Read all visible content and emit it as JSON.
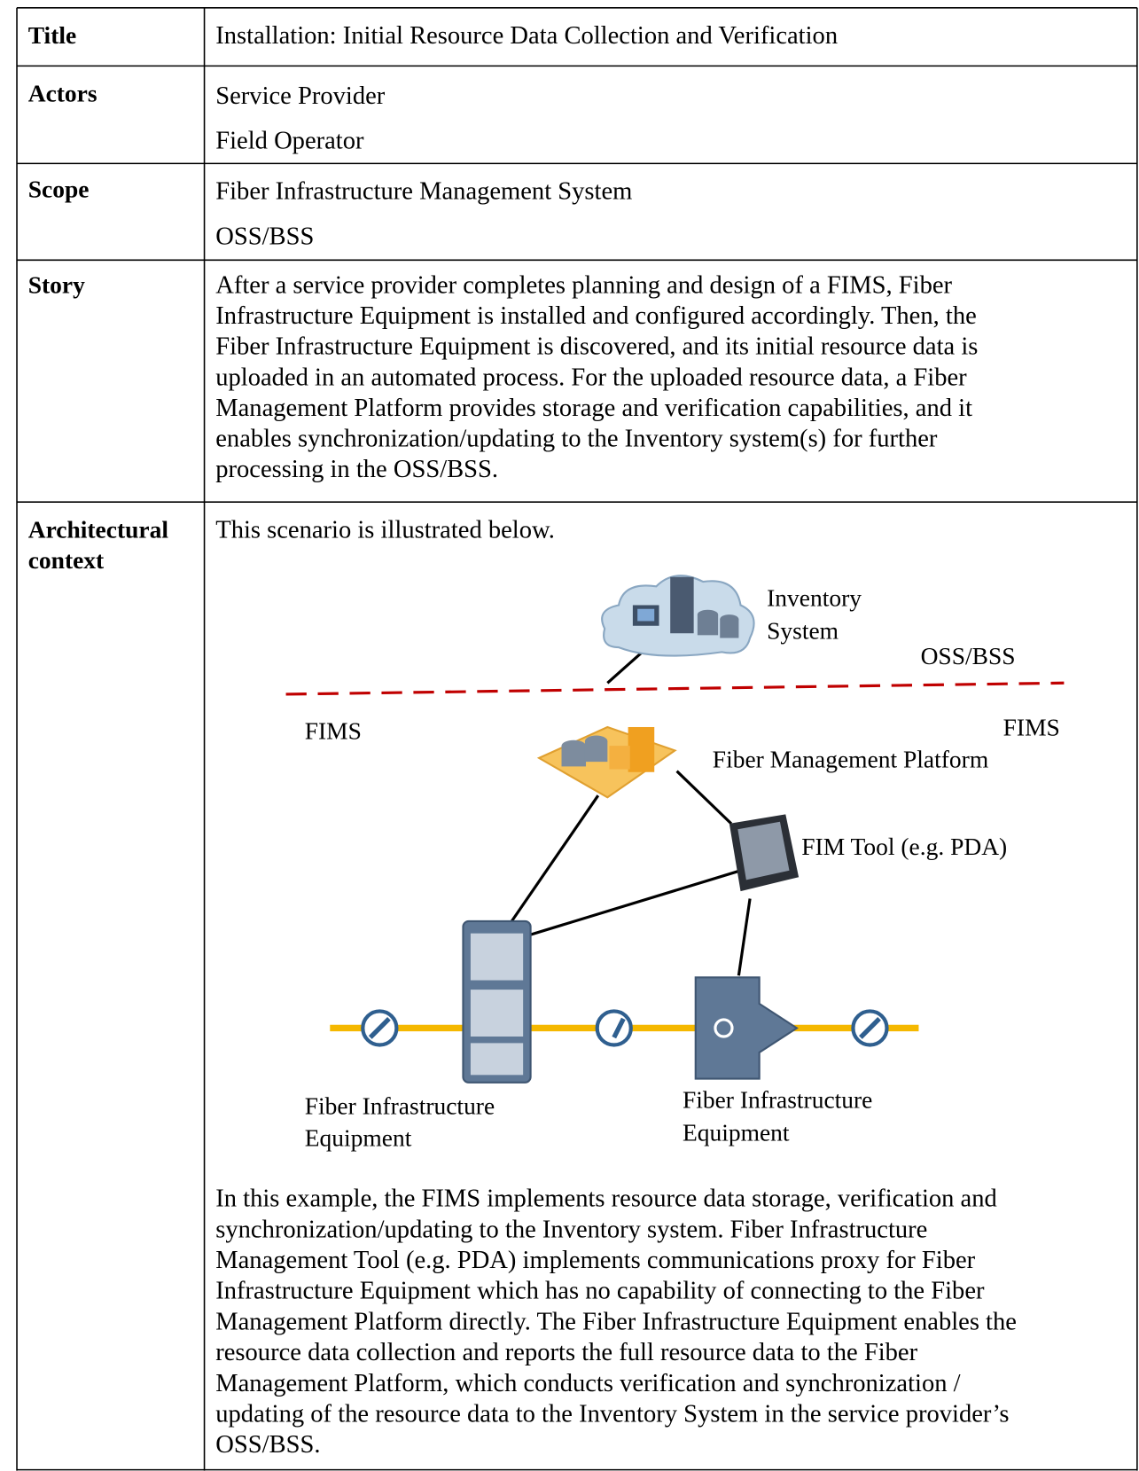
{
  "table": {
    "rows": [
      {
        "label": [
          "Title"
        ],
        "content": [
          "Installation: Initial Resource Data Collection and Verification"
        ]
      },
      {
        "label": [
          "Actors"
        ],
        "content": [
          "Service Provider",
          "Field Operator"
        ]
      },
      {
        "label": [
          "Scope"
        ],
        "content": [
          "Fiber Infrastructure Management System",
          "OSS/BSS"
        ]
      },
      {
        "label": [
          "Story"
        ],
        "content": [
          "After a service provider completes planning and design of a FIMS, Fiber",
          "Infrastructure Equipment is installed and configured accordingly. Then, the",
          "Fiber Infrastructure Equipment is discovered, and its initial resource data is",
          "uploaded in an automated process. For the uploaded resource data, a Fiber",
          "Management Platform provides storage and verification capabilities, and it",
          "enables synchronization/updating to the Inventory system(s) for further",
          "processing in the OSS/BSS."
        ]
      },
      {
        "label": [
          "Architectural",
          "context"
        ],
        "content": [
          "This scenario is illustrated below."
        ],
        "diagram": {
          "inventory_system": [
            "Inventory",
            "System"
          ],
          "oss_bss": "OSS/BSS",
          "fims_left": "FIMS",
          "fims_right": "FIMS",
          "platform": "Fiber Management Platform",
          "fim_tool": "FIM Tool (e.g. PDA)",
          "equipment_1": [
            "Fiber Infrastructure",
            "Equipment"
          ],
          "equipment_2": [
            "Fiber Infrastructure",
            "Equipment"
          ]
        },
        "description": [
          "In this example, the FIMS implements resource data storage, verification and",
          "synchronization/updating to the Inventory system. Fiber Infrastructure",
          "Management Tool (e.g. PDA) implements communications proxy for Fiber",
          "Infrastructure Equipment which has no capability of connecting to the Fiber",
          "Management Platform directly. The Fiber Infrastructure Equipment enables the",
          "resource data collection and reports the full resource data to the Fiber",
          "Management Platform, which conducts verification and synchronization /",
          "updating of the resource data to the Inventory System in the service provider’s",
          "OSS/BSS."
        ]
      }
    ]
  }
}
